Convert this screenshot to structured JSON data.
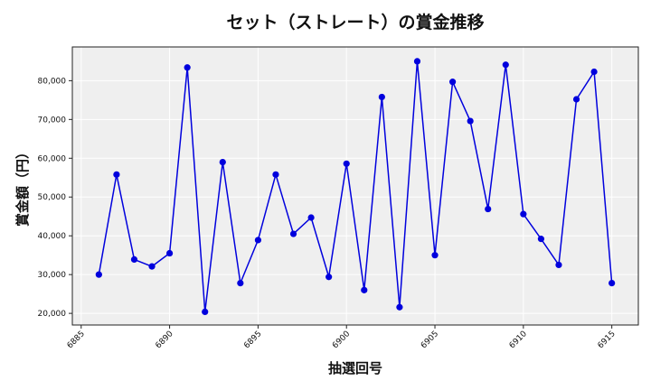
{
  "chart_data": {
    "type": "line",
    "title": "セット（ストレート）の賞金推移",
    "xlabel": "抽選回号",
    "ylabel": "賞金額（円）",
    "x": [
      6886,
      6887,
      6888,
      6889,
      6890,
      6891,
      6892,
      6893,
      6894,
      6895,
      6896,
      6897,
      6898,
      6899,
      6900,
      6901,
      6902,
      6903,
      6904,
      6905,
      6906,
      6907,
      6908,
      6909,
      6910,
      6911,
      6912,
      6913,
      6914,
      6915
    ],
    "series": [
      {
        "name": "セット（ストレート）",
        "color": "#0000dd",
        "marker": "circle",
        "values": [
          30000,
          55800,
          33900,
          32100,
          35500,
          83400,
          20400,
          59000,
          27800,
          38900,
          55800,
          40500,
          44700,
          29400,
          58600,
          26000,
          75800,
          21600,
          85000,
          35000,
          79700,
          69600,
          46900,
          84100,
          45600,
          39200,
          32500,
          75200,
          82300,
          27800
        ]
      }
    ],
    "xticks": [
      6885,
      6890,
      6895,
      6900,
      6905,
      6910,
      6915
    ],
    "yticks": [
      20000,
      30000,
      40000,
      50000,
      60000,
      70000,
      80000
    ],
    "ytick_labels": [
      "20,000",
      "30,000",
      "40,000",
      "50,000",
      "60,000",
      "70,000",
      "80,000"
    ],
    "xlim": [
      6884.5,
      6916.5
    ],
    "ylim": [
      17000,
      88700
    ],
    "grid": true,
    "background": "#efefef",
    "legend": null
  }
}
